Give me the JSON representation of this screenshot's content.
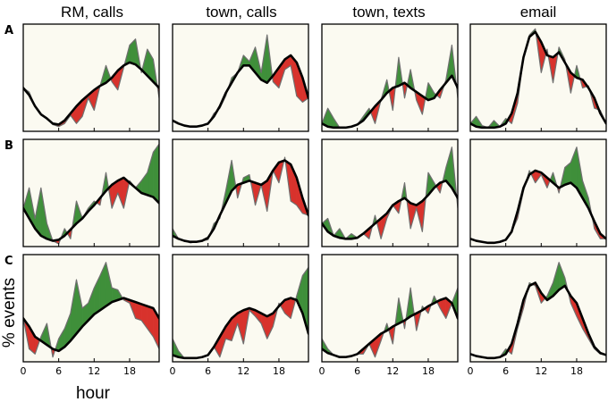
{
  "figure": {
    "column_titles": [
      "RM, calls",
      "town, calls",
      "town, texts",
      "email"
    ],
    "row_labels": [
      "A",
      "B",
      "C"
    ],
    "xlabel": "hour",
    "ylabel": "% events",
    "x_ticks": [
      0,
      6,
      12,
      18
    ],
    "colors": {
      "above": "#3f8f3a",
      "below": "#d8322c",
      "mean_line": "#000000",
      "individual_line": "#6f6f6f",
      "panel_background": "#fbfaf1"
    }
  },
  "chart_data": {
    "type": "area",
    "description_fields": [
      "panels indexed by row (A,B,C) and column"
    ],
    "x": [
      0,
      1,
      2,
      3,
      4,
      5,
      6,
      7,
      8,
      9,
      10,
      11,
      12,
      13,
      14,
      15,
      16,
      17,
      18,
      19,
      20,
      21,
      22,
      23
    ],
    "xlim": [
      0,
      23
    ],
    "ylim": [
      0,
      1
    ],
    "panels": [
      {
        "row": "A",
        "column": "RM, calls",
        "mean": [
          0.4,
          0.33,
          0.22,
          0.14,
          0.1,
          0.05,
          0.04,
          0.08,
          0.15,
          0.22,
          0.28,
          0.33,
          0.38,
          0.42,
          0.45,
          0.5,
          0.57,
          0.62,
          0.65,
          0.63,
          0.58,
          0.52,
          0.46,
          0.4
        ],
        "individual": [
          0.4,
          0.36,
          0.22,
          0.14,
          0.1,
          0.04,
          0.02,
          0.05,
          0.13,
          0.05,
          0.12,
          0.3,
          0.18,
          0.42,
          0.62,
          0.46,
          0.38,
          0.6,
          0.82,
          0.88,
          0.55,
          0.78,
          0.68,
          0.3
        ]
      },
      {
        "row": "A",
        "column": "town, calls",
        "mean": [
          0.08,
          0.05,
          0.03,
          0.02,
          0.02,
          0.03,
          0.05,
          0.12,
          0.22,
          0.35,
          0.45,
          0.55,
          0.62,
          0.62,
          0.55,
          0.48,
          0.45,
          0.52,
          0.6,
          0.68,
          0.72,
          0.65,
          0.5,
          0.3
        ],
        "individual": [
          0.08,
          0.05,
          0.03,
          0.02,
          0.02,
          0.03,
          0.04,
          0.15,
          0.2,
          0.32,
          0.5,
          0.55,
          0.72,
          0.66,
          0.8,
          0.55,
          0.92,
          0.46,
          0.4,
          0.58,
          0.62,
          0.32,
          0.26,
          0.3
        ]
      },
      {
        "row": "A",
        "column": "town, texts",
        "mean": [
          0.05,
          0.02,
          0.01,
          0.01,
          0.01,
          0.02,
          0.04,
          0.08,
          0.15,
          0.22,
          0.28,
          0.35,
          0.4,
          0.42,
          0.45,
          0.4,
          0.36,
          0.32,
          0.28,
          0.3,
          0.38,
          0.45,
          0.52,
          0.4
        ],
        "individual": [
          0.05,
          0.2,
          0.1,
          0.01,
          0.01,
          0.02,
          0.04,
          0.12,
          0.2,
          0.05,
          0.28,
          0.48,
          0.18,
          0.7,
          0.3,
          0.58,
          0.28,
          0.14,
          0.45,
          0.35,
          0.3,
          0.48,
          0.82,
          0.3
        ]
      },
      {
        "row": "A",
        "column": "email",
        "mean": [
          0.05,
          0.02,
          0.01,
          0.01,
          0.01,
          0.02,
          0.05,
          0.15,
          0.35,
          0.7,
          0.9,
          0.95,
          0.85,
          0.72,
          0.7,
          0.75,
          0.65,
          0.55,
          0.5,
          0.48,
          0.4,
          0.3,
          0.15,
          0.05
        ],
        "individual": [
          0.05,
          0.12,
          0.03,
          0.01,
          0.08,
          0.02,
          0.1,
          0.05,
          0.25,
          0.7,
          0.92,
          0.98,
          0.55,
          0.78,
          0.45,
          0.8,
          0.68,
          0.35,
          0.62,
          0.4,
          0.42,
          0.2,
          0.18,
          0.05
        ]
      },
      {
        "row": "B",
        "column": "RM, calls",
        "mean": [
          0.35,
          0.25,
          0.15,
          0.08,
          0.05,
          0.03,
          0.04,
          0.08,
          0.14,
          0.2,
          0.25,
          0.32,
          0.38,
          0.45,
          0.52,
          0.58,
          0.62,
          0.65,
          0.6,
          0.55,
          0.5,
          0.48,
          0.46,
          0.4
        ],
        "individual": [
          0.35,
          0.55,
          0.25,
          0.55,
          0.2,
          0.03,
          0.0,
          0.15,
          0.05,
          0.42,
          0.25,
          0.35,
          0.42,
          0.38,
          0.7,
          0.35,
          0.5,
          0.35,
          0.62,
          0.55,
          0.62,
          0.7,
          0.9,
          0.98
        ]
      },
      {
        "row": "B",
        "column": "town, calls",
        "mean": [
          0.08,
          0.05,
          0.03,
          0.02,
          0.02,
          0.03,
          0.06,
          0.15,
          0.28,
          0.4,
          0.52,
          0.58,
          0.6,
          0.62,
          0.6,
          0.58,
          0.62,
          0.72,
          0.8,
          0.82,
          0.78,
          0.65,
          0.45,
          0.28
        ],
        "individual": [
          0.15,
          0.05,
          0.03,
          0.01,
          0.02,
          0.03,
          0.04,
          0.2,
          0.25,
          0.52,
          0.82,
          0.45,
          0.65,
          0.68,
          0.38,
          0.58,
          0.32,
          0.72,
          0.6,
          0.85,
          0.42,
          0.38,
          0.3,
          0.28
        ]
      },
      {
        "row": "B",
        "column": "town, texts",
        "mean": [
          0.2,
          0.12,
          0.08,
          0.06,
          0.05,
          0.05,
          0.06,
          0.1,
          0.15,
          0.2,
          0.25,
          0.3,
          0.38,
          0.42,
          0.45,
          0.4,
          0.38,
          0.42,
          0.48,
          0.55,
          0.6,
          0.62,
          0.55,
          0.45
        ],
        "individual": [
          0.2,
          0.25,
          0.08,
          0.15,
          0.05,
          0.1,
          0.06,
          0.1,
          0.05,
          0.28,
          0.05,
          0.25,
          0.38,
          0.3,
          0.6,
          0.15,
          0.35,
          0.12,
          0.7,
          0.6,
          0.5,
          0.75,
          0.95,
          0.35
        ]
      },
      {
        "row": "B",
        "column": "email",
        "mean": [
          0.05,
          0.03,
          0.02,
          0.01,
          0.01,
          0.02,
          0.04,
          0.12,
          0.32,
          0.55,
          0.68,
          0.72,
          0.7,
          0.65,
          0.6,
          0.55,
          0.58,
          0.6,
          0.55,
          0.45,
          0.35,
          0.22,
          0.1,
          0.05
        ],
        "individual": [
          0.05,
          0.03,
          0.02,
          0.01,
          0.01,
          0.02,
          0.04,
          0.12,
          0.25,
          0.52,
          0.72,
          0.6,
          0.68,
          0.55,
          0.7,
          0.5,
          0.75,
          0.8,
          0.95,
          0.62,
          0.45,
          0.15,
          0.05,
          0.05
        ]
      },
      {
        "row": "C",
        "column": "RM, calls",
        "mean": [
          0.4,
          0.32,
          0.22,
          0.18,
          0.14,
          0.1,
          0.08,
          0.12,
          0.18,
          0.25,
          0.32,
          0.38,
          0.44,
          0.48,
          0.52,
          0.56,
          0.58,
          0.6,
          0.58,
          0.56,
          0.54,
          0.52,
          0.5,
          0.4
        ],
        "individual": [
          0.4,
          0.1,
          0.05,
          0.22,
          0.35,
          0.02,
          0.2,
          0.3,
          0.45,
          0.78,
          0.5,
          0.55,
          0.7,
          0.82,
          0.95,
          0.7,
          0.68,
          0.58,
          0.55,
          0.4,
          0.38,
          0.3,
          0.22,
          0.1
        ]
      },
      {
        "row": "C",
        "column": "town, calls",
        "mean": [
          0.04,
          0.02,
          0.01,
          0.01,
          0.01,
          0.02,
          0.04,
          0.12,
          0.22,
          0.32,
          0.4,
          0.45,
          0.48,
          0.5,
          0.48,
          0.45,
          0.42,
          0.45,
          0.52,
          0.58,
          0.6,
          0.58,
          0.45,
          0.25
        ],
        "individual": [
          0.2,
          0.08,
          0.01,
          0.01,
          0.01,
          0.02,
          0.04,
          0.12,
          0.02,
          0.2,
          0.18,
          0.35,
          0.15,
          0.48,
          0.42,
          0.35,
          0.2,
          0.32,
          0.55,
          0.45,
          0.4,
          0.62,
          0.82,
          0.9
        ]
      },
      {
        "row": "C",
        "column": "town, texts",
        "mean": [
          0.1,
          0.06,
          0.04,
          0.02,
          0.02,
          0.03,
          0.05,
          0.1,
          0.15,
          0.2,
          0.25,
          0.28,
          0.32,
          0.35,
          0.38,
          0.42,
          0.45,
          0.48,
          0.52,
          0.55,
          0.58,
          0.6,
          0.55,
          0.4
        ],
        "individual": [
          0.2,
          0.1,
          0.04,
          0.02,
          0.02,
          0.03,
          0.05,
          0.05,
          0.15,
          0.02,
          0.18,
          0.35,
          0.15,
          0.6,
          0.3,
          0.7,
          0.28,
          0.52,
          0.45,
          0.62,
          0.5,
          0.4,
          0.55,
          0.7
        ]
      },
      {
        "row": "C",
        "column": "email",
        "mean": [
          0.05,
          0.03,
          0.02,
          0.01,
          0.01,
          0.02,
          0.05,
          0.15,
          0.35,
          0.58,
          0.72,
          0.75,
          0.65,
          0.58,
          0.62,
          0.68,
          0.72,
          0.62,
          0.55,
          0.4,
          0.25,
          0.12,
          0.06,
          0.04
        ],
        "individual": [
          0.05,
          0.03,
          0.02,
          0.01,
          0.01,
          0.02,
          0.1,
          0.05,
          0.3,
          0.5,
          0.75,
          0.72,
          0.55,
          0.62,
          0.75,
          0.95,
          0.8,
          0.55,
          0.42,
          0.3,
          0.2,
          0.1,
          0.05,
          0.04
        ]
      }
    ]
  }
}
